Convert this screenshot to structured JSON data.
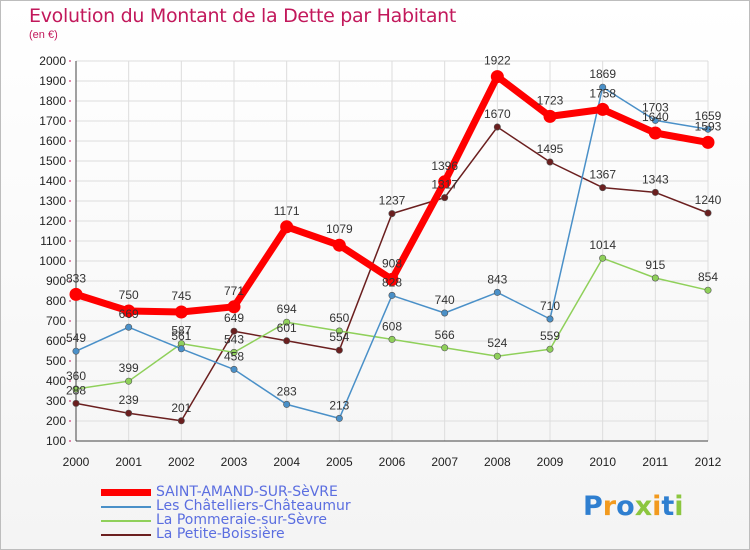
{
  "title": "Evolution du Montant de la Dette par Habitant",
  "subtitle": "(en €)",
  "logo": "Proxiti",
  "chart_data": {
    "type": "line",
    "title": "Evolution du Montant de la Dette par Habitant",
    "unit": "(en €)",
    "x": [
      "2000",
      "2001",
      "2002",
      "2003",
      "2004",
      "2005",
      "2006",
      "2007",
      "2008",
      "2009",
      "2010",
      "2011",
      "2012"
    ],
    "ylim": [
      100,
      2000
    ],
    "yticks": [
      100,
      200,
      300,
      400,
      500,
      600,
      700,
      800,
      900,
      1000,
      1100,
      1200,
      1300,
      1400,
      1500,
      1600,
      1700,
      1800,
      1900,
      2000
    ],
    "grid": true,
    "legend_position": "bottom-left",
    "series": [
      {
        "name": "SAINT-AMAND-SUR-SèVRE",
        "color": "#ff0000",
        "values": [
          833,
          750,
          745,
          771,
          1171,
          1079,
          908,
          1396,
          1922,
          1723,
          1758,
          1640,
          1593
        ]
      },
      {
        "name": "Les Châtelliers-Châteaumur",
        "color": "#4a90c8",
        "values": [
          549,
          669,
          561,
          458,
          283,
          213,
          828,
          740,
          843,
          710,
          1869,
          1703,
          1659
        ]
      },
      {
        "name": "La Pommeraie-sur-Sèvre",
        "color": "#8fd05a",
        "values": [
          360,
          399,
          587,
          543,
          694,
          650,
          608,
          566,
          524,
          559,
          1014,
          915,
          854
        ]
      },
      {
        "name": "La Petite-Boissière",
        "color": "#6b1f1f",
        "values": [
          288,
          239,
          201,
          649,
          601,
          554,
          1237,
          1317,
          1670,
          1495,
          1367,
          1343,
          1240
        ]
      }
    ]
  }
}
